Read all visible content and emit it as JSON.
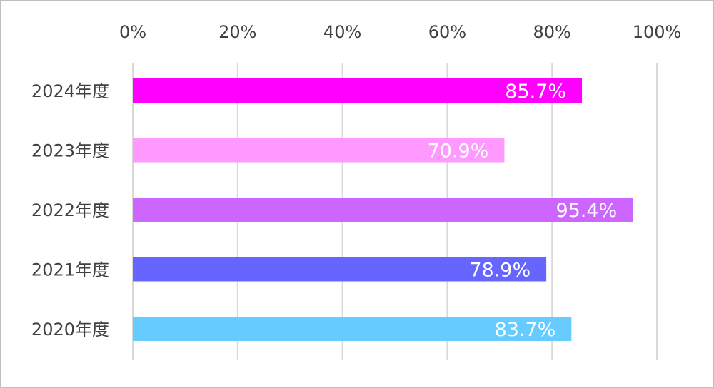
{
  "chart_data": {
    "type": "bar",
    "orientation": "horizontal",
    "title": "",
    "xlabel": "",
    "ylabel": "",
    "xlim": [
      0,
      100
    ],
    "x_tick_values": [
      0,
      20,
      40,
      60,
      80,
      100
    ],
    "x_tick_labels": [
      "0%",
      "20%",
      "40%",
      "60%",
      "80%",
      "100%"
    ],
    "x_axis_position": "top",
    "grid": true,
    "legend": "none",
    "categories": [
      "2024年度",
      "2023年度",
      "2022年度",
      "2021年度",
      "2020年度"
    ],
    "values": [
      85.7,
      70.9,
      95.4,
      78.9,
      83.7
    ],
    "data_labels": [
      "85.7%",
      "70.9%",
      "95.4%",
      "78.9%",
      "83.7%"
    ],
    "colors": [
      "#ff00ff",
      "#ff99ff",
      "#cc66ff",
      "#6666ff",
      "#66ccff"
    ]
  }
}
